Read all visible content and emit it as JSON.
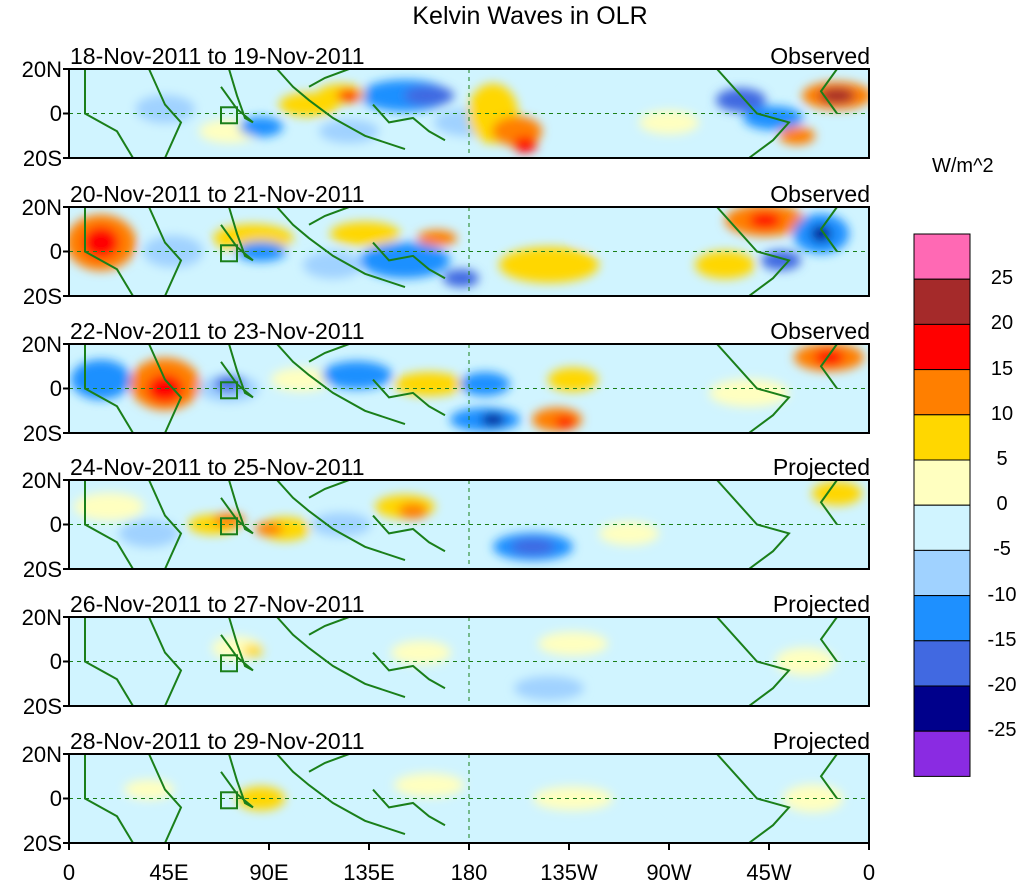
{
  "title": "Kelvin Waves in OLR",
  "panels": [
    {
      "date_range": "18-Nov-2011 to 19-Nov-2011",
      "status": "Observed"
    },
    {
      "date_range": "20-Nov-2011 to 21-Nov-2011",
      "status": "Observed"
    },
    {
      "date_range": "22-Nov-2011 to 23-Nov-2011",
      "status": "Observed"
    },
    {
      "date_range": "24-Nov-2011 to 25-Nov-2011",
      "status": "Projected"
    },
    {
      "date_range": "26-Nov-2011 to 27-Nov-2011",
      "status": "Projected"
    },
    {
      "date_range": "28-Nov-2011 to 29-Nov-2011",
      "status": "Projected"
    }
  ],
  "lat_labels": [
    "20N",
    "0",
    "20S"
  ],
  "lon_labels": [
    "0",
    "45E",
    "90E",
    "135E",
    "180",
    "135W",
    "90W",
    "45W",
    "0"
  ],
  "colorbar": {
    "units": "W/m^2",
    "tick_labels": [
      "25",
      "20",
      "15",
      "10",
      "5",
      "0",
      "-5",
      "-10",
      "-15",
      "-20",
      "-25"
    ],
    "colors": [
      "#ff69b4",
      "#a52a2a",
      "#ff0000",
      "#ff7f00",
      "#ffd700",
      "#ffffc0",
      "#d0f4ff",
      "#a0d2ff",
      "#1e90ff",
      "#4169e1",
      "#00008b",
      "#8a2be2"
    ]
  }
}
